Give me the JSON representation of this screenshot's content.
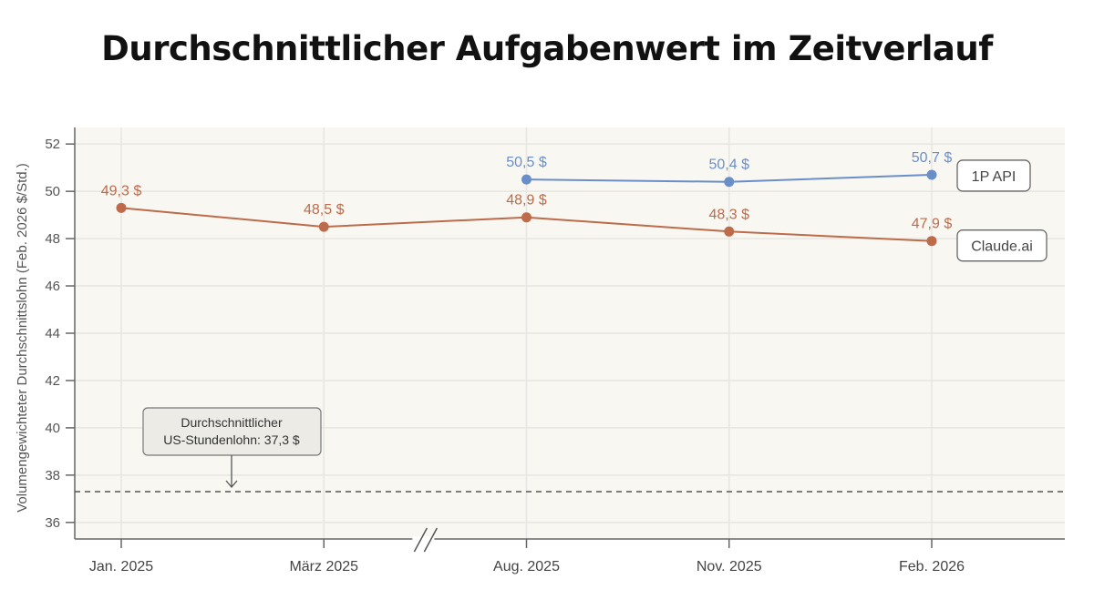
{
  "chart_data": {
    "type": "line",
    "title": "Durchschnittlicher Aufgabenwert im Zeitverlauf",
    "xlabel": "",
    "ylabel": "Volumengewichteter Durchschnittslohn (Feb. 2026 $/Std.)",
    "categories": [
      "Jan. 2025",
      "März 2025",
      "Aug. 2025",
      "Nov. 2025",
      "Feb. 2026"
    ],
    "axis_break_between": [
      "März 2025",
      "Aug. 2025"
    ],
    "ylim": [
      35.3,
      52.7
    ],
    "yticks": [
      36,
      38,
      40,
      42,
      44,
      46,
      48,
      50,
      52
    ],
    "grid": true,
    "series": [
      {
        "name": "1P API",
        "color": "#6a8fc8",
        "values": [
          null,
          null,
          50.5,
          50.4,
          50.7
        ],
        "labels": [
          null,
          null,
          "50,5 $",
          "50,4 $",
          "50,7 $"
        ]
      },
      {
        "name": "Claude.ai",
        "color": "#bd6b4a",
        "values": [
          49.3,
          48.5,
          48.9,
          48.3,
          47.9
        ],
        "labels": [
          "49,3 $",
          "48,5 $",
          "48,9 $",
          "48,3 $",
          "47,9 $"
        ]
      }
    ],
    "reference_line": {
      "value": 37.3,
      "style": "dashed",
      "color": "#555555",
      "annotation_lines": [
        "Durchschnittlicher",
        "US-Stundenlohn: 37,3 $"
      ]
    }
  }
}
